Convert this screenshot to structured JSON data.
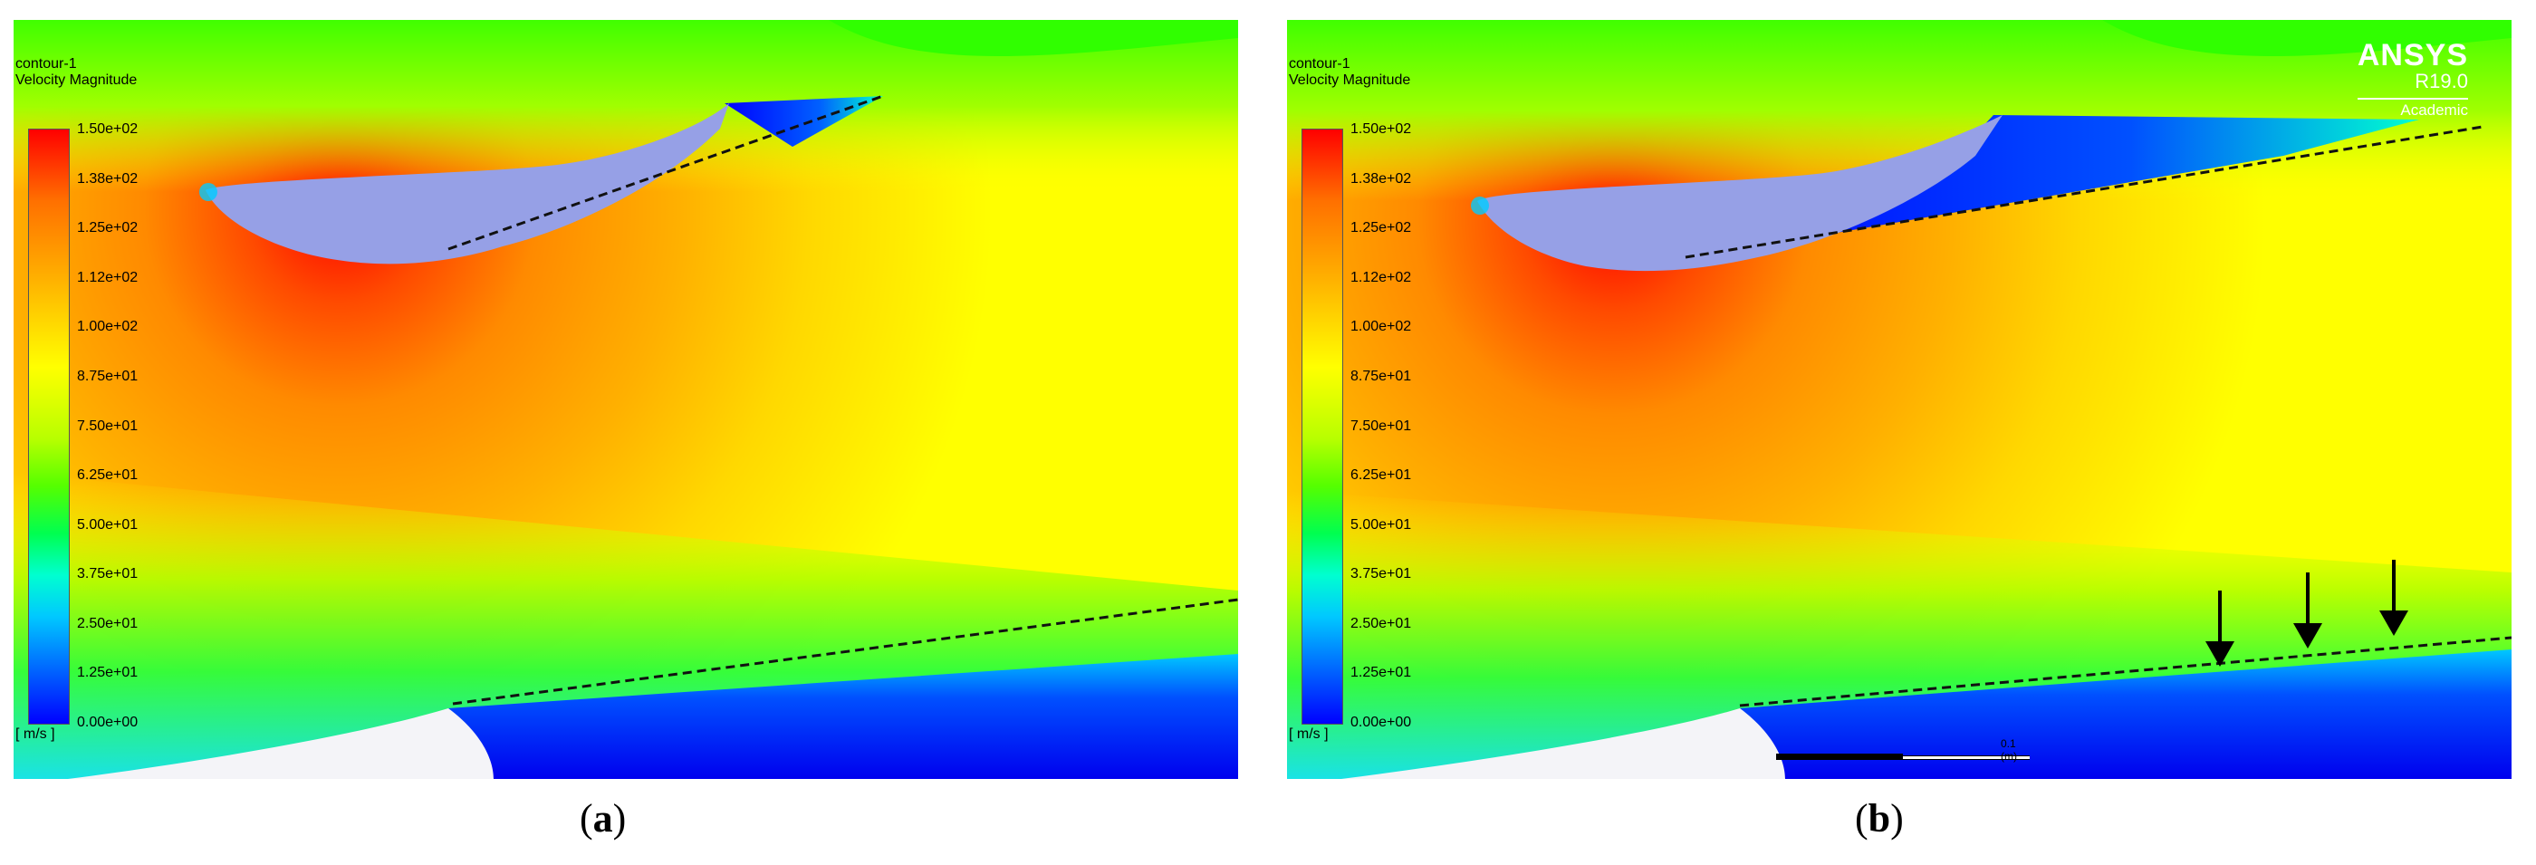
{
  "panels": [
    {
      "legend_title_1": "contour-1",
      "legend_title_2": "Velocity Magnitude",
      "unit": "[ m/s ]",
      "ticks": [
        "1.50e+02",
        "1.38e+02",
        "1.25e+02",
        "1.12e+02",
        "1.00e+02",
        "8.75e+01",
        "7.50e+01",
        "6.25e+01",
        "5.00e+01",
        "3.75e+01",
        "2.50e+01",
        "1.25e+01",
        "0.00e+00"
      ],
      "caption_open": "(",
      "caption_letter": "a",
      "caption_close": ")"
    },
    {
      "legend_title_1": "contour-1",
      "legend_title_2": "Velocity Magnitude",
      "unit": "[ m/s ]",
      "ticks": [
        "1.50e+02",
        "1.38e+02",
        "1.25e+02",
        "1.12e+02",
        "1.00e+02",
        "8.75e+01",
        "7.50e+01",
        "6.25e+01",
        "5.00e+01",
        "3.75e+01",
        "2.50e+01",
        "1.25e+01",
        "0.00e+00"
      ],
      "caption_open": "(",
      "caption_letter": "b",
      "caption_close": ")",
      "brand": "ANSYS",
      "release": "R19.0",
      "license": "Academic",
      "scale_label": "0.1 (m)"
    }
  ],
  "colors": {
    "max": "#ff0000",
    "high": "#ffa500",
    "mid": "#ffff00",
    "low": "#00ff00",
    "min": "#0000ff",
    "solid": "#96a0e6"
  }
}
